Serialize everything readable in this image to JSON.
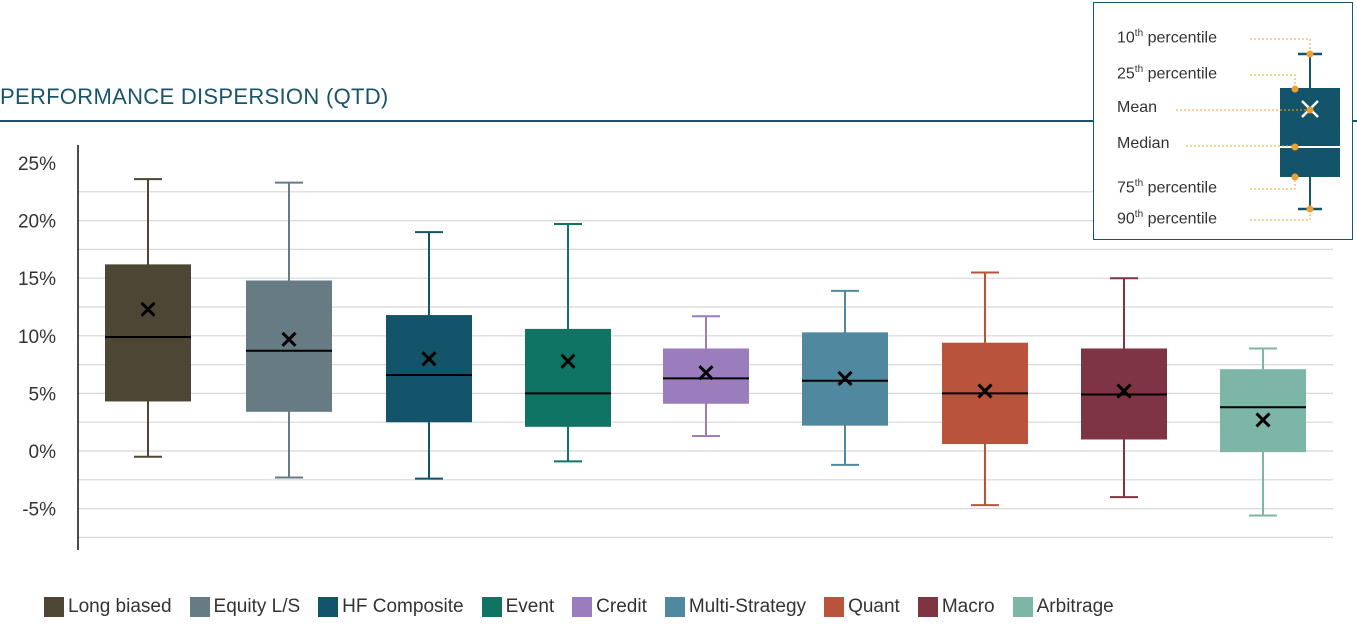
{
  "title": "PERFORMANCE DISPERSION (QTD)",
  "chart_data": {
    "type": "box",
    "title": "PERFORMANCE DISPERSION (QTD)",
    "ylim": [
      -8,
      25
    ],
    "yticks": [
      25,
      20,
      15,
      10,
      5,
      0,
      -5
    ],
    "ytick_labels": [
      "25%",
      "20%",
      "15%",
      "10%",
      "5%",
      "0%",
      "-5%"
    ],
    "grid": true,
    "legend_position": "bottom",
    "series": [
      {
        "name": "Long biased",
        "color": "#4d4634",
        "p10": -0.5,
        "p25": 4.3,
        "median": 9.9,
        "mean": 12.3,
        "p75": 16.2,
        "p90": 23.6
      },
      {
        "name": "Equity L/S",
        "color": "#667b84",
        "p10": -2.3,
        "p25": 3.4,
        "median": 8.7,
        "mean": 9.7,
        "p75": 14.8,
        "p90": 23.3
      },
      {
        "name": "HF Composite",
        "color": "#14546a",
        "p10": -2.4,
        "p25": 2.5,
        "median": 6.6,
        "mean": 8.0,
        "p75": 11.8,
        "p90": 19.0
      },
      {
        "name": "Event",
        "color": "#0f7464",
        "p10": -0.9,
        "p25": 2.1,
        "median": 5.0,
        "mean": 7.8,
        "p75": 10.6,
        "p90": 19.7
      },
      {
        "name": "Credit",
        "color": "#9b7cbc",
        "p10": 1.3,
        "p25": 4.1,
        "median": 6.3,
        "mean": 6.8,
        "p75": 8.9,
        "p90": 11.7
      },
      {
        "name": "Multi-Strategy",
        "color": "#50889f",
        "p10": -1.2,
        "p25": 2.2,
        "median": 6.1,
        "mean": 6.3,
        "p75": 10.3,
        "p90": 13.9
      },
      {
        "name": "Quant",
        "color": "#b9533b",
        "p10": -4.7,
        "p25": 0.6,
        "median": 5.0,
        "mean": 5.2,
        "p75": 9.4,
        "p90": 15.5
      },
      {
        "name": "Macro",
        "color": "#7e3442",
        "p10": -4.0,
        "p25": 1.0,
        "median": 4.9,
        "mean": 5.2,
        "p75": 8.9,
        "p90": 15.0
      },
      {
        "name": "Arbitrage",
        "color": "#7db5a6",
        "p10": -5.6,
        "p25": -0.1,
        "median": 3.8,
        "mean": 2.7,
        "p75": 7.1,
        "p90": 8.9
      }
    ]
  },
  "key": {
    "box_color": "#14546a",
    "leader_color": "#f0a030",
    "labels": [
      {
        "num": "10",
        "sup": "th",
        "text": " percentile"
      },
      {
        "num": "25",
        "sup": "th",
        "text": " percentile"
      },
      {
        "num": "",
        "sup": "",
        "text": "Mean"
      },
      {
        "num": "",
        "sup": "",
        "text": "Median"
      },
      {
        "num": "75",
        "sup": "th",
        "text": " percentile"
      },
      {
        "num": "90",
        "sup": "th",
        "text": " percentile"
      }
    ]
  }
}
